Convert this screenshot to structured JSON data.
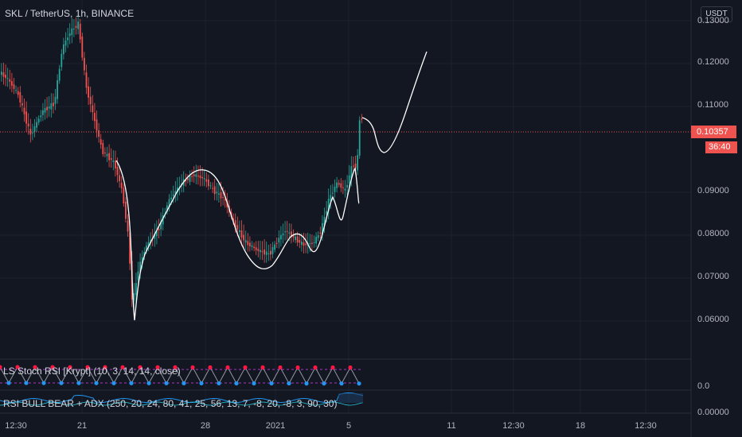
{
  "header": {
    "symbol_title": "SKL / TetherUS, 1h, BINANCE",
    "currency_button": "USDT"
  },
  "price_axis": {
    "labels": [
      "0.13000",
      "0.12000",
      "0.11000",
      "0.09000",
      "0.08000",
      "0.07000",
      "0.06000"
    ],
    "last_price": "0.10357",
    "countdown": "36:40"
  },
  "indicators": {
    "stoch_rsi_label": "LS Stoch RSI [Krypt] (10, 3, 14, 14, close)",
    "stoch_axis_label": "0.0",
    "rsi_bull_bear_label": "RSI BULL BEAR + ADX (250, 20, 24, 80, 41, 25, 56, 13, 7, -8, 20, -8, 3, 90, 30)",
    "rsi_axis_label": "0.00000"
  },
  "time_axis": {
    "labels": [
      "12:30",
      "21",
      "28",
      "2021",
      "5",
      "11",
      "12:30",
      "18",
      "12:30"
    ]
  },
  "colors": {
    "background": "#131722",
    "up": "#26a69a",
    "down": "#ef5350",
    "drawing": "#ffffff",
    "stoch_up_dot": "#ff1744",
    "stoch_down_dot": "#2196f3",
    "price_line": "#ef5350"
  }
}
